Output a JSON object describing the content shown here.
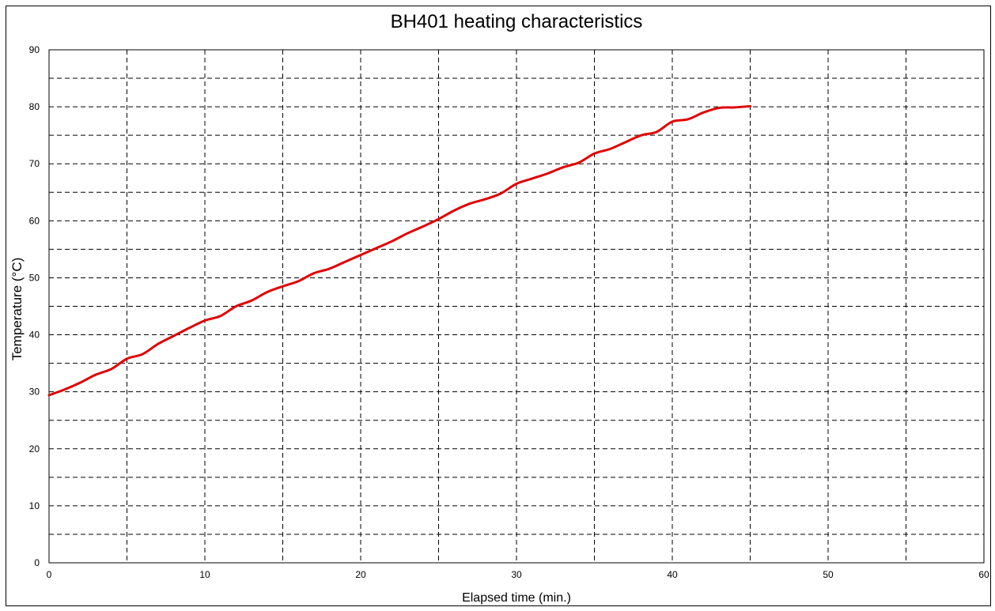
{
  "chart_data": {
    "type": "line",
    "title": "BH401 heating characteristics",
    "xlabel": "Elapsed time (min.)",
    "ylabel": "Temperature (°C)",
    "xlim": [
      0,
      60
    ],
    "ylim": [
      0,
      90
    ],
    "x_major_ticks": [
      0,
      10,
      20,
      30,
      40,
      50,
      60
    ],
    "y_major_ticks": [
      0,
      10,
      20,
      30,
      40,
      50,
      60,
      70,
      80,
      90
    ],
    "x_grid_step": 5,
    "y_grid_step": 5,
    "grid": true,
    "grid_style": "dashed",
    "legend": "none",
    "series": [
      {
        "color": "#e00000",
        "x": [
          0,
          1,
          2,
          3,
          4,
          5,
          6,
          7,
          8,
          9,
          10,
          11,
          12,
          13,
          14,
          15,
          16,
          17,
          18,
          19,
          20,
          21,
          22,
          23,
          24,
          25,
          26,
          27,
          28,
          29,
          30,
          31,
          32,
          33,
          34,
          35,
          36,
          37,
          38,
          39,
          40,
          41,
          42,
          43,
          44,
          45
        ],
        "y": [
          29.4,
          30.4,
          31.6,
          33.0,
          34.0,
          35.8,
          36.6,
          38.4,
          39.8,
          41.2,
          42.5,
          43.3,
          45.0,
          46.0,
          47.5,
          48.5,
          49.4,
          50.8,
          51.6,
          52.8,
          54.0,
          55.2,
          56.4,
          57.8,
          59.0,
          60.3,
          61.8,
          63.0,
          63.8,
          64.8,
          66.5,
          67.4,
          68.3,
          69.4,
          70.2,
          71.8,
          72.6,
          73.8,
          75.0,
          75.6,
          77.4,
          77.8,
          79.0,
          79.8,
          79.9,
          80.1
        ]
      }
    ]
  }
}
